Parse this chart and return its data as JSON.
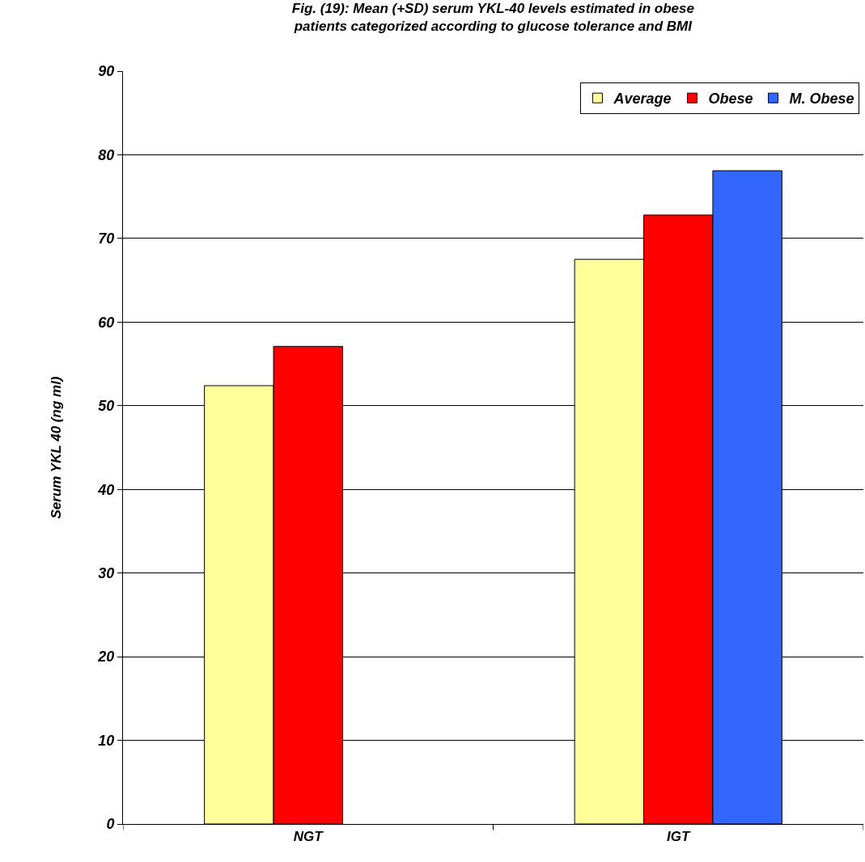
{
  "chart_data": {
    "type": "bar",
    "title": "Fig. (19): Mean (+SD) serum YKL-40 levels estimated in obese\npatients categorized according to glucose tolerance and BMI",
    "ylabel": "Serum YKL 40 (ng ml)",
    "categories": [
      "NGT",
      "IGT"
    ],
    "series": [
      {
        "name": "Average",
        "color": "#ffff99",
        "values": [
          52.4,
          67.5
        ]
      },
      {
        "name": "Obese",
        "color": "#ff0000",
        "values": [
          57.1,
          72.8
        ]
      },
      {
        "name": "M. Obese",
        "color": "#3366ff",
        "values": [
          null,
          78.1
        ]
      }
    ],
    "ylim": [
      0,
      90
    ],
    "yticks": [
      0,
      10,
      20,
      30,
      40,
      50,
      60,
      70,
      80,
      90
    ],
    "grid": "y",
    "legend": "top right"
  }
}
